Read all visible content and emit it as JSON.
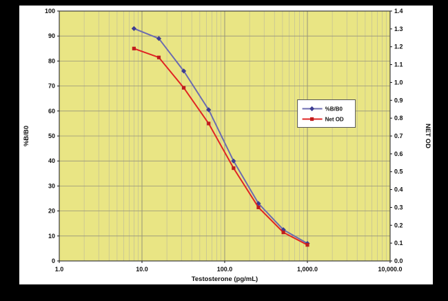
{
  "chart_data": {
    "type": "line",
    "title": "",
    "xlabel": "Testosterone (pg/mL)",
    "x_axis": {
      "scale": "log",
      "lim": [
        1,
        10000
      ],
      "ticks": [
        {
          "v": 1,
          "label": "1.0"
        },
        {
          "v": 10,
          "label": "10.0"
        },
        {
          "v": 100,
          "label": "100.0"
        },
        {
          "v": 1000,
          "label": "1,000.0"
        },
        {
          "v": 10000,
          "label": "10,000.0"
        }
      ]
    },
    "left_axis": {
      "label": "%B/B0",
      "lim": [
        0,
        100
      ],
      "ticks": [
        "0",
        "10",
        "20",
        "30",
        "40",
        "50",
        "60",
        "70",
        "80",
        "90",
        "100"
      ]
    },
    "right_axis": {
      "label": "NET OD",
      "lim": [
        0,
        1.4
      ],
      "ticks": [
        "0.0",
        "0.1",
        "0.2",
        "0.3",
        "0.4",
        "0.5",
        "0.6",
        "0.7",
        "0.8",
        "0.9",
        "1.0",
        "1.1",
        "1.2",
        "1.3",
        "1.4"
      ]
    },
    "x": [
      8,
      16,
      32,
      64,
      128,
      256,
      512,
      1000
    ],
    "series": [
      {
        "name": "%B/B0",
        "axis": "left",
        "color": "#6b6bb0",
        "marker": "diamond",
        "marker_color": "#3d3d92",
        "values": [
          93,
          89,
          76,
          60.5,
          40,
          23,
          12.5,
          7
        ]
      },
      {
        "name": "Net OD",
        "axis": "right",
        "color": "#e02424",
        "marker": "square",
        "marker_color": "#c01d1d",
        "values": [
          1.19,
          1.14,
          0.97,
          0.77,
          0.52,
          0.3,
          0.16,
          0.09
        ]
      }
    ],
    "legend": {
      "position": "middle-right",
      "entries": [
        "%B/B0",
        "Net OD"
      ]
    },
    "style": {
      "plot_bg": "#e9e584",
      "grid_minor": "#c0bd98",
      "grid_major": "#95927a",
      "plot_border": "#3a3a3a",
      "panel_bg": "#ffffff",
      "frame_bg": "#000000",
      "legend_bg": "#ffffff",
      "legend_border": "#555555"
    }
  }
}
